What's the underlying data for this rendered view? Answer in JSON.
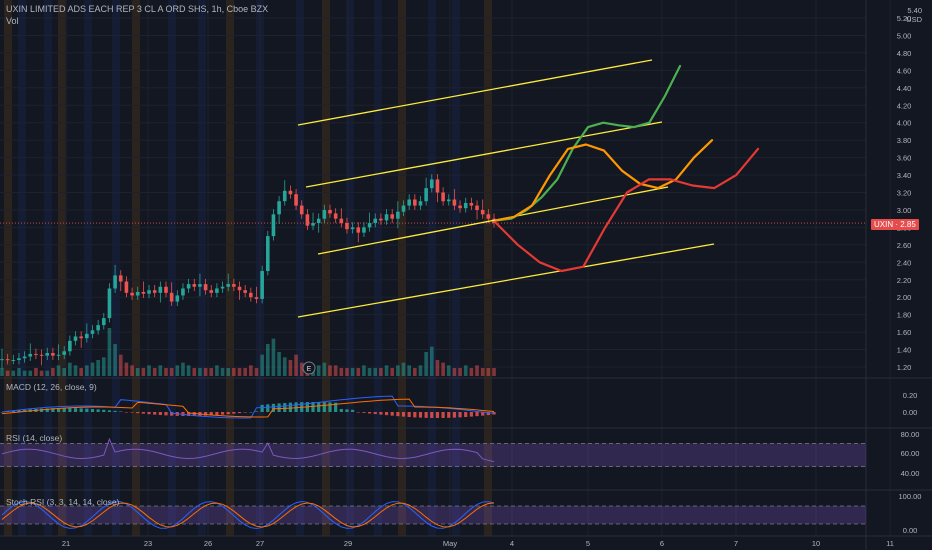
{
  "header": {
    "title": "UXIN LIMITED ADS EACH REP 3 CL A ORD SHS, 1h, Cboe BZX",
    "volume_label": "Vol"
  },
  "axis": {
    "currency": "USD",
    "corner": "5.40",
    "price_ticks": [
      "5.20",
      "5.00",
      "4.80",
      "4.60",
      "4.40",
      "4.20",
      "4.00",
      "3.80",
      "3.60",
      "3.40",
      "3.20",
      "3.00",
      "2.80",
      "2.60",
      "2.40",
      "2.20",
      "2.00",
      "1.80",
      "1.60",
      "1.40",
      "1.20"
    ],
    "price_tag": {
      "symbol": "UXIN",
      "value": "2.85",
      "color": "#e64c4c"
    },
    "time_ticks": [
      "21",
      "23",
      "26",
      "27",
      "29",
      "May",
      "4",
      "5",
      "6",
      "7",
      "10",
      "11"
    ]
  },
  "earnings_marker": "E",
  "panels": {
    "macd": {
      "title": "MACD (12, 26, close, 9)",
      "ticks": [
        "0.20",
        "0.00"
      ]
    },
    "rsi": {
      "title": "RSI (14, close)",
      "ticks": [
        "80.00",
        "60.00",
        "40.00"
      ],
      "band": [
        30,
        70
      ]
    },
    "stoch": {
      "title": "Stoch RSI (3, 3, 14, 14, close)",
      "ticks": [
        "100.00",
        "0.00"
      ],
      "band": [
        20,
        80
      ]
    }
  },
  "colors": {
    "bg": "#131722",
    "up": "#26a69a",
    "down": "#ef5350",
    "channel": "#ffeb3b",
    "scenario_green": "#4caf50",
    "scenario_orange": "#ff9800",
    "scenario_red": "#e53935",
    "macd_line": "#2962ff",
    "signal_line": "#ff6d00",
    "rsi_line": "#7e57c2",
    "stoch_k": "#2962ff",
    "stoch_d": "#ff6d00"
  },
  "chart_data": {
    "type": "candlestick",
    "x_labels": [
      "21",
      "23",
      "26",
      "27",
      "29",
      "May",
      "4",
      "5",
      "6",
      "7",
      "10",
      "11"
    ],
    "ylim": [
      1.1,
      5.4
    ],
    "price_series": [
      1.29,
      1.28,
      1.28,
      1.3,
      1.32,
      1.35,
      1.34,
      1.33,
      1.36,
      1.33,
      1.34,
      1.38,
      1.5,
      1.55,
      1.53,
      1.58,
      1.62,
      1.68,
      1.76,
      2.1,
      2.25,
      2.18,
      2.05,
      2.02,
      2.06,
      2.04,
      2.08,
      2.05,
      2.12,
      2.05,
      1.95,
      2.02,
      2.1,
      2.15,
      2.12,
      2.15,
      2.08,
      2.05,
      2.1,
      2.12,
      2.15,
      2.12,
      2.08,
      2.05,
      2.0,
      1.98,
      2.3,
      2.7,
      2.95,
      3.1,
      3.22,
      3.18,
      3.05,
      2.95,
      2.82,
      2.85,
      2.9,
      3.0,
      2.96,
      2.9,
      2.85,
      2.78,
      2.8,
      2.74,
      2.8,
      2.85,
      2.9,
      2.88,
      2.95,
      2.9,
      2.98,
      3.05,
      3.12,
      3.05,
      3.1,
      3.25,
      3.35,
      3.2,
      3.1,
      3.12,
      3.05,
      3.02,
      3.08,
      3.05,
      3.0,
      2.95,
      2.9,
      2.85
    ],
    "volume_series": [
      3,
      2,
      2,
      3,
      2,
      2,
      3,
      2,
      2,
      3,
      4,
      3,
      5,
      4,
      3,
      4,
      5,
      6,
      7,
      18,
      12,
      8,
      5,
      4,
      3,
      3,
      4,
      3,
      4,
      3,
      3,
      4,
      5,
      4,
      3,
      3,
      3,
      3,
      4,
      3,
      3,
      3,
      3,
      3,
      4,
      3,
      8,
      12,
      14,
      9,
      7,
      6,
      8,
      5,
      5,
      4,
      4,
      5,
      4,
      4,
      3,
      3,
      3,
      3,
      4,
      3,
      3,
      3,
      4,
      3,
      4,
      5,
      4,
      3,
      4,
      9,
      11,
      6,
      5,
      4,
      3,
      3,
      4,
      3,
      4,
      3,
      3,
      3
    ],
    "channel_lines": [
      {
        "name": "upper",
        "from": [
          0,
          3.9
        ],
        "to": [
          1,
          4.63
        ]
      },
      {
        "name": "mid-upper",
        "from": [
          0,
          3.25
        ],
        "to": [
          1,
          3.96
        ]
      },
      {
        "name": "mid-lower",
        "from": [
          0,
          2.5
        ],
        "to": [
          1,
          3.22
        ]
      },
      {
        "name": "lower",
        "from": [
          0,
          1.76
        ],
        "to": [
          1,
          2.52
        ]
      }
    ],
    "scenario_paths": [
      {
        "color": "green",
        "values": [
          2.88,
          2.9,
          3.0,
          3.15,
          3.35,
          3.7,
          3.95,
          4.0,
          3.97,
          3.95,
          4.0,
          4.3,
          4.65
        ]
      },
      {
        "color": "orange",
        "values": [
          2.88,
          2.92,
          3.05,
          3.4,
          3.7,
          3.75,
          3.68,
          3.45,
          3.3,
          3.25,
          3.35,
          3.6,
          3.8
        ]
      },
      {
        "color": "red",
        "values": [
          2.85,
          2.6,
          2.4,
          2.3,
          2.35,
          2.8,
          3.2,
          3.35,
          3.35,
          3.28,
          3.25,
          3.4,
          3.7
        ]
      }
    ],
    "rsi_range": [
      0,
      100
    ],
    "stoch_range": [
      0,
      100
    ]
  }
}
